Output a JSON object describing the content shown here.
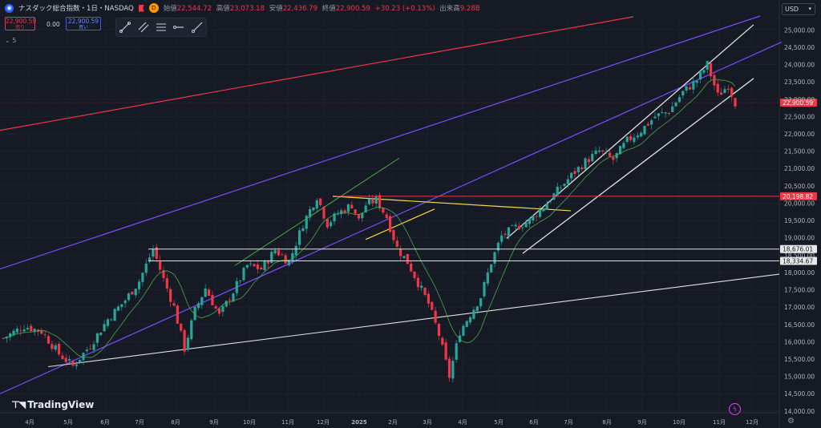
{
  "header": {
    "symbol": "ナスダック総合指数・1日・NASDAQ",
    "interval_badge": "D",
    "ohlc": [
      {
        "label": "始値",
        "value": "22,544.72"
      },
      {
        "label": "高値",
        "value": "23,073.18"
      },
      {
        "label": "安値",
        "value": "22,436.79"
      },
      {
        "label": "終値",
        "value": "22,900.59"
      }
    ],
    "change": "+30.23 (+0.13%)",
    "volume_label": "出来高",
    "volume_value": "9.28B"
  },
  "trade": {
    "sell_price": "22,900.59",
    "sell_label": "売り",
    "spread": "0.00",
    "buy_price": "22,900.59",
    "buy_label": "買い"
  },
  "indicators_count": "5",
  "currency": "USD",
  "brand": "TradingView",
  "colors": {
    "background": "#161a25",
    "up": "#26a69a",
    "down": "#f23645",
    "ma": "#4caf50",
    "channel_purple": "#7b4dff",
    "resistance_red": "#f23645",
    "trend_yellow": "#f5d742",
    "trend_white": "#e0e0e0"
  },
  "chart_data": {
    "type": "candlestick",
    "x_ticks": [
      "4月",
      "5月",
      "6月",
      "7月",
      "8月",
      "9月",
      "10月",
      "11月",
      "12月",
      "2025",
      "2月",
      "3月",
      "4月",
      "5月",
      "6月",
      "7月",
      "8月",
      "9月",
      "10月",
      "11月",
      "12月"
    ],
    "y_ticks": [
      "25,000.00",
      "24,500.00",
      "24,000.00",
      "23,500.00",
      "23,000.00",
      "22,500.00",
      "22,000.00",
      "21,500.00",
      "21,000.00",
      "20,500.00",
      "20,000.00",
      "19,500.00",
      "19,000.00",
      "18,500.00",
      "18,000.00",
      "17,500.00",
      "17,000.00",
      "16,500.00",
      "16,000.00",
      "15,500.00",
      "15,000.00",
      "14,500.00",
      "14,000.00"
    ],
    "ylim": [
      13950,
      25400
    ],
    "last_price": 22900.59,
    "levels": [
      {
        "value": 20198.82,
        "label": "20,198.82",
        "color": "#f23645"
      },
      {
        "value": 18676.01,
        "label": "18,676.01",
        "color": "#e0e0e0"
      },
      {
        "value": 18334.67,
        "label": "18,334.67",
        "color": "#e0e0e0"
      }
    ],
    "price_path": [
      [
        0,
        16100
      ],
      [
        6,
        16450
      ],
      [
        11,
        16300
      ],
      [
        16,
        15650
      ],
      [
        20,
        15300
      ],
      [
        25,
        15900
      ],
      [
        30,
        16650
      ],
      [
        35,
        17200
      ],
      [
        39,
        17750
      ],
      [
        43,
        18676
      ],
      [
        46,
        17800
      ],
      [
        49,
        17000
      ],
      [
        52,
        15800
      ],
      [
        55,
        16900
      ],
      [
        58,
        17550
      ],
      [
        62,
        16750
      ],
      [
        66,
        17450
      ],
      [
        70,
        18200
      ],
      [
        74,
        18100
      ],
      [
        78,
        18650
      ],
      [
        82,
        18300
      ],
      [
        86,
        19400
      ],
      [
        90,
        20198
      ],
      [
        93,
        19400
      ],
      [
        96,
        19700
      ],
      [
        100,
        19950
      ],
      [
        102,
        19500
      ],
      [
        104,
        19950
      ],
      [
        107,
        20100
      ],
      [
        110,
        19600
      ],
      [
        113,
        18700
      ],
      [
        116,
        18300
      ],
      [
        119,
        17700
      ],
      [
        122,
        17100
      ],
      [
        125,
        16200
      ],
      [
        128,
        15000
      ],
      [
        131,
        16300
      ],
      [
        134,
        16800
      ],
      [
        137,
        17300
      ],
      [
        140,
        18300
      ],
      [
        143,
        19050
      ],
      [
        147,
        19300
      ],
      [
        151,
        19500
      ],
      [
        155,
        19900
      ],
      [
        159,
        20350
      ],
      [
        163,
        20800
      ],
      [
        167,
        21200
      ],
      [
        171,
        21500
      ],
      [
        175,
        21250
      ],
      [
        179,
        21800
      ],
      [
        183,
        22100
      ],
      [
        187,
        22500
      ],
      [
        191,
        22650
      ],
      [
        195,
        23200
      ],
      [
        199,
        23550
      ],
      [
        202,
        24000
      ],
      [
        205,
        23100
      ],
      [
        208,
        23400
      ],
      [
        210,
        22900
      ]
    ],
    "date_range_index": [
      0,
      210
    ]
  }
}
